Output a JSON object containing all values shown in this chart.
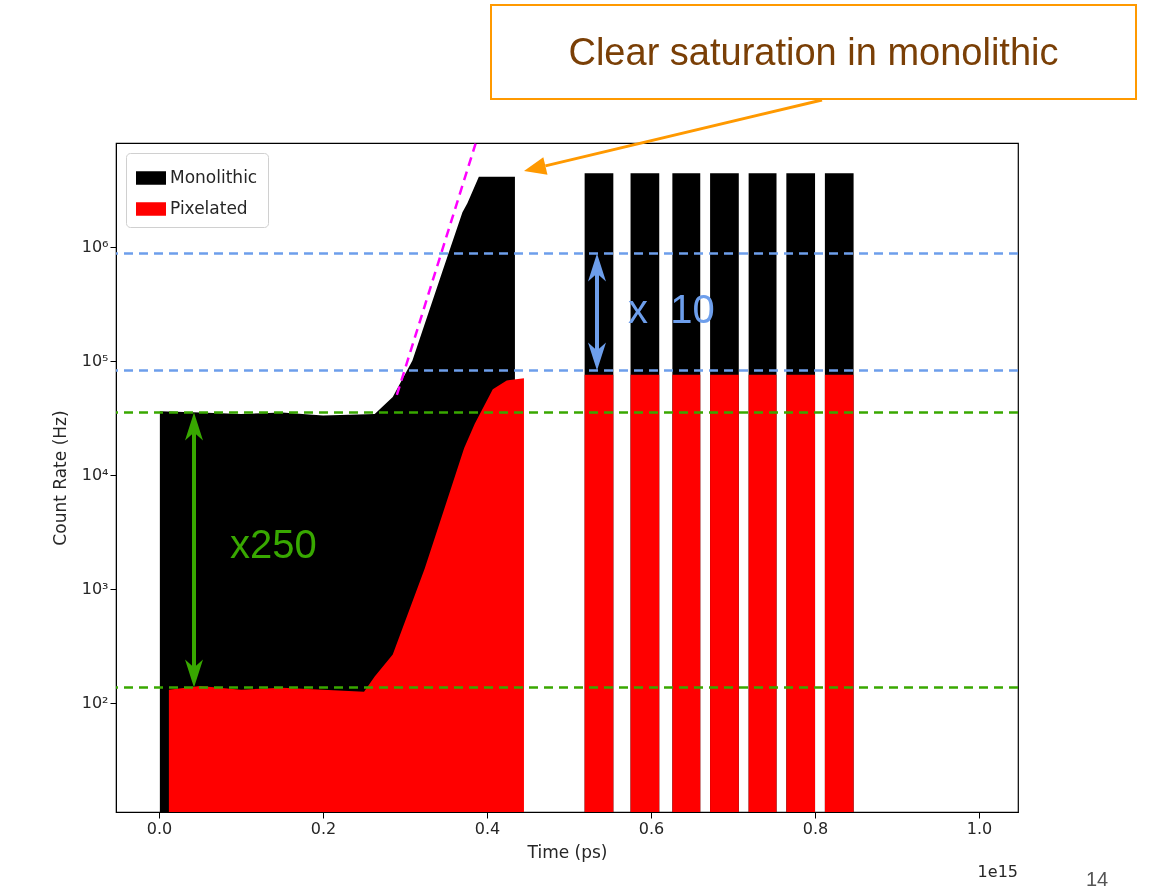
{
  "chart_data": {
    "type": "area",
    "xlabel": "Time (ps)",
    "ylabel": "Count Rate (Hz)",
    "xlim": [
      -0.0525,
      1.0475
    ],
    "xticks": [
      {
        "value": 0,
        "label": "0.0"
      },
      0.2,
      0.4,
      0.6,
      0.8,
      {
        "value": 1,
        "label": "1.0"
      }
    ],
    "ylim": [
      11,
      8100000
    ],
    "yticks": [
      {
        "value": 100,
        "label": "10²"
      },
      {
        "value": 1000,
        "label": "10³"
      },
      {
        "value": 10000,
        "label": "10⁴"
      },
      {
        "value": 100000,
        "label": "10⁵"
      },
      {
        "value": 1000000,
        "label": "10⁶"
      }
    ],
    "log": true,
    "grid": false,
    "legend": "top left",
    "series": [
      {
        "name": "Monolithic",
        "color": "#000000",
        "x": [
          0.001,
          0.05,
          0.1,
          0.15,
          0.2,
          0.263,
          0.285,
          0.309,
          0.345,
          0.37,
          0.376,
          0.39,
          0.434,
          0.48,
          0.519,
          0.554,
          0.564,
          0.575,
          0.61,
          0.618,
          0.626,
          0.66,
          0.666,
          0.672,
          0.707,
          0.713,
          0.719,
          0.753,
          0.759,
          0.765,
          0.8,
          0.806,
          0.812,
          0.847
        ],
        "values": [
          36000,
          35000,
          34000,
          35000,
          33000,
          34000,
          48000,
          100000,
          590000,
          2000000,
          2400000,
          4100000,
          4100000,
          null,
          4400000,
          4400000,
          null,
          4400000,
          4400000,
          null,
          4400000,
          4400000,
          null,
          4400000,
          4400000,
          null,
          4400000,
          4400000,
          null,
          4400000,
          4400000,
          null,
          4400000,
          4400000
        ]
      },
      {
        "name": "Pixelated",
        "color": "#ff0000",
        "x": [
          0.012,
          0.05,
          0.1,
          0.15,
          0.2,
          0.25,
          0.263,
          0.285,
          0.324,
          0.372,
          0.385,
          0.407,
          0.424,
          0.445,
          0.48,
          0.519,
          0.554,
          0.564,
          0.575,
          0.61,
          0.618,
          0.626,
          0.66,
          0.666,
          0.672,
          0.707,
          0.713,
          0.719,
          0.753,
          0.759,
          0.765,
          0.8,
          0.806,
          0.812,
          0.847
        ],
        "values": [
          130,
          140,
          130,
          135,
          130,
          125,
          170,
          265,
          1500,
          17000,
          28000,
          56000,
          67000,
          70000,
          null,
          75000,
          75000,
          null,
          75000,
          75000,
          null,
          75000,
          75000,
          null,
          75000,
          75000,
          null,
          75000,
          75000,
          null,
          75000,
          75000,
          null,
          75000,
          75000
        ]
      },
      {
        "type": "line",
        "color": "#ff00ff",
        "line_style": "dashed",
        "x": [
          0.29,
          0.386
        ],
        "values": [
          50000,
          8000000
        ]
      }
    ],
    "ref_lines": [
      {
        "axis": "y",
        "value": 870000,
        "color": "#6d9eeb",
        "line_style": "dashed"
      },
      {
        "axis": "y",
        "value": 82000,
        "color": "#6d9eeb",
        "line_style": "dashed"
      },
      {
        "axis": "y",
        "value": 35000,
        "color": "#38a800",
        "line_style": "dashed"
      },
      {
        "axis": "y",
        "value": 136,
        "color": "#38a800",
        "line_style": "dashed"
      }
    ],
    "annotations": [
      "Clear saturation in monolithic",
      "x250",
      "x  10",
      "1e15",
      "14"
    ]
  }
}
